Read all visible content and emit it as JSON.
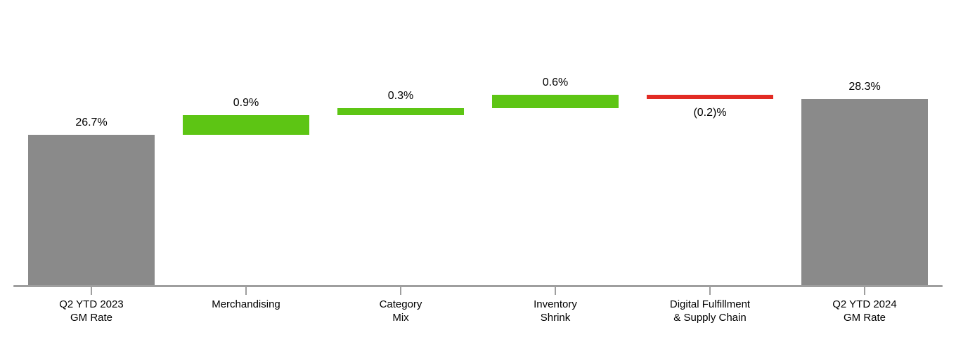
{
  "chart_data": {
    "type": "bar",
    "subtype": "waterfall",
    "title": "",
    "xlabel": "",
    "ylabel": "",
    "ylim": [
      20,
      34
    ],
    "grid": false,
    "legend": "none",
    "categories": [
      "Q2 YTD 2023\nGM Rate",
      "Merchandising",
      "Category\nMix",
      "Inventory\nShrink",
      "Digital Fulfillment\n& Supply Chain",
      "Q2 YTD 2024\nGM Rate"
    ],
    "columns": [
      {
        "category": "Q2 YTD 2023\nGM Rate",
        "role": "total",
        "value": 26.7,
        "label": "26.7%",
        "label_position": "above"
      },
      {
        "category": "Merchandising",
        "role": "increase",
        "value": 0.9,
        "label": "0.9%",
        "label_position": "above"
      },
      {
        "category": "Category\nMix",
        "role": "increase",
        "value": 0.3,
        "label": "0.3%",
        "label_position": "above"
      },
      {
        "category": "Inventory\nShrink",
        "role": "increase",
        "value": 0.6,
        "label": "0.6%",
        "label_position": "above"
      },
      {
        "category": "Digital Fulfillment\n& Supply Chain",
        "role": "decrease",
        "value": -0.2,
        "label": "(0.2)%",
        "label_position": "below"
      },
      {
        "category": "Q2 YTD 2024\nGM Rate",
        "role": "total",
        "value": 28.3,
        "label": "28.3%",
        "label_position": "above"
      }
    ],
    "colors": {
      "total": "#8A8A8A",
      "increase": "#5DC514",
      "decrease": "#E22B24",
      "axis": "#9E9E9E",
      "text": "#000000",
      "background": "#FFFFFF"
    }
  }
}
